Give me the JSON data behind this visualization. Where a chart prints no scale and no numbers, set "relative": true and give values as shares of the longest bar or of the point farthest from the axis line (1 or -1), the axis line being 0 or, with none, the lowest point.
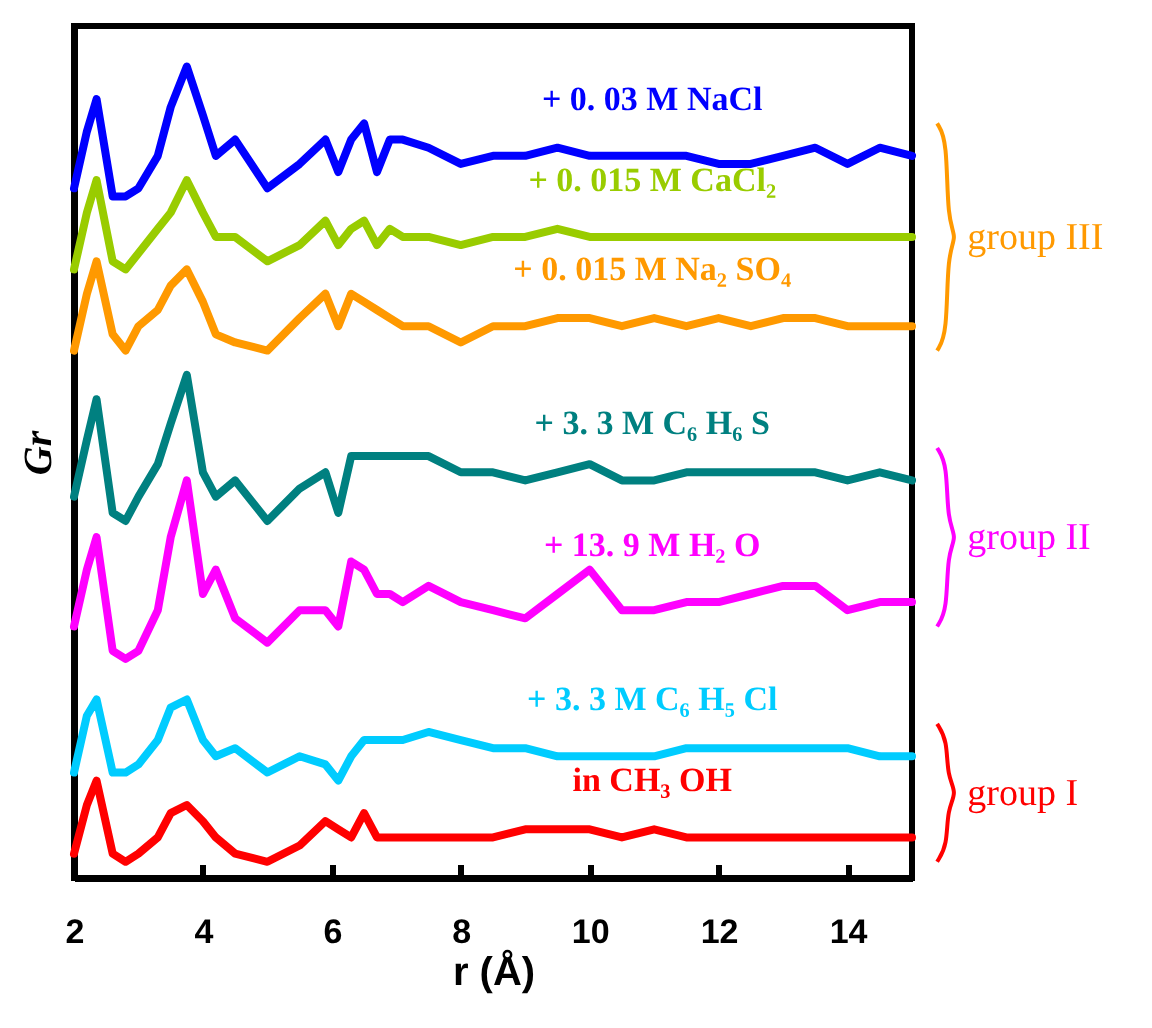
{
  "chart_data": {
    "type": "line",
    "relative": true,
    "xlabel": "r (Å)",
    "ylabel": "Gr",
    "xlim": [
      2,
      15
    ],
    "xticks": [
      2,
      4,
      6,
      8,
      10,
      12,
      14
    ],
    "grid": false,
    "marker": "none",
    "x": [
      2.0,
      2.2,
      2.35,
      2.6,
      2.8,
      3.0,
      3.3,
      3.5,
      3.75,
      4.0,
      4.2,
      4.5,
      5.0,
      5.5,
      5.9,
      6.1,
      6.3,
      6.5,
      6.7,
      6.9,
      7.1,
      7.5,
      8.0,
      8.5,
      9.0,
      9.5,
      10.0,
      10.5,
      11.0,
      11.5,
      12.0,
      12.5,
      13.0,
      13.5,
      14.0,
      14.5,
      15.0
    ],
    "series": [
      {
        "name": "+ 0. 03 M NaCl",
        "color": "#0000ff",
        "values": [
          0.85,
          0.92,
          0.96,
          0.84,
          0.84,
          0.85,
          0.89,
          0.95,
          1.0,
          0.94,
          0.89,
          0.91,
          0.85,
          0.88,
          0.91,
          0.87,
          0.91,
          0.93,
          0.87,
          0.91,
          0.91,
          0.9,
          0.88,
          0.89,
          0.89,
          0.9,
          0.89,
          0.89,
          0.89,
          0.89,
          0.88,
          0.88,
          0.89,
          0.9,
          0.88,
          0.9,
          0.89
        ]
      },
      {
        "name": "+ 0. 015 M CaCl₂",
        "color": "#99cc00",
        "values": [
          0.75,
          0.82,
          0.86,
          0.76,
          0.75,
          0.77,
          0.8,
          0.82,
          0.86,
          0.82,
          0.79,
          0.79,
          0.76,
          0.78,
          0.81,
          0.78,
          0.8,
          0.81,
          0.78,
          0.8,
          0.79,
          0.79,
          0.78,
          0.79,
          0.79,
          0.8,
          0.79,
          0.79,
          0.79,
          0.79,
          0.79,
          0.79,
          0.79,
          0.79,
          0.79,
          0.79,
          0.79
        ]
      },
      {
        "name": "+ 0. 015 M Na₂ SO₄",
        "color": "#ff9900",
        "values": [
          0.65,
          0.72,
          0.76,
          0.67,
          0.65,
          0.68,
          0.7,
          0.73,
          0.75,
          0.71,
          0.67,
          0.66,
          0.65,
          0.69,
          0.72,
          0.68,
          0.72,
          0.71,
          0.7,
          0.69,
          0.68,
          0.68,
          0.66,
          0.68,
          0.68,
          0.69,
          0.69,
          0.68,
          0.69,
          0.68,
          0.69,
          0.68,
          0.69,
          0.69,
          0.68,
          0.68,
          0.68
        ]
      },
      {
        "name": "+ 3. 3 M C₆ H₆ S",
        "color": "#008080",
        "values": [
          0.47,
          0.54,
          0.59,
          0.45,
          0.44,
          0.47,
          0.51,
          0.56,
          0.62,
          0.5,
          0.47,
          0.49,
          0.44,
          0.48,
          0.5,
          0.45,
          0.52,
          0.52,
          0.52,
          0.52,
          0.52,
          0.52,
          0.5,
          0.5,
          0.49,
          0.5,
          0.51,
          0.49,
          0.49,
          0.5,
          0.5,
          0.5,
          0.5,
          0.5,
          0.49,
          0.5,
          0.49
        ]
      },
      {
        "name": "+ 13. 9 M H₂ O",
        "color": "#ff00ff",
        "values": [
          0.31,
          0.38,
          0.42,
          0.28,
          0.27,
          0.28,
          0.33,
          0.42,
          0.49,
          0.35,
          0.38,
          0.32,
          0.29,
          0.33,
          0.33,
          0.31,
          0.39,
          0.38,
          0.35,
          0.35,
          0.34,
          0.36,
          0.34,
          0.33,
          0.32,
          0.35,
          0.38,
          0.33,
          0.33,
          0.34,
          0.34,
          0.35,
          0.36,
          0.36,
          0.33,
          0.34,
          0.34
        ]
      },
      {
        "name": "+ 3. 3 M C₆ H₅ Cl",
        "color": "#00ccff",
        "values": [
          0.13,
          0.2,
          0.22,
          0.13,
          0.13,
          0.14,
          0.17,
          0.21,
          0.22,
          0.17,
          0.15,
          0.16,
          0.13,
          0.15,
          0.14,
          0.12,
          0.15,
          0.17,
          0.17,
          0.17,
          0.17,
          0.18,
          0.17,
          0.16,
          0.16,
          0.15,
          0.15,
          0.15,
          0.15,
          0.16,
          0.16,
          0.16,
          0.16,
          0.16,
          0.16,
          0.15,
          0.15
        ]
      },
      {
        "name": "in CH₃ OH",
        "color": "#ff0000",
        "values": [
          0.03,
          0.09,
          0.12,
          0.03,
          0.02,
          0.03,
          0.05,
          0.08,
          0.09,
          0.07,
          0.05,
          0.03,
          0.02,
          0.04,
          0.07,
          0.06,
          0.05,
          0.08,
          0.05,
          0.05,
          0.05,
          0.05,
          0.05,
          0.05,
          0.06,
          0.06,
          0.06,
          0.05,
          0.06,
          0.05,
          0.05,
          0.05,
          0.05,
          0.05,
          0.05,
          0.05,
          0.05
        ]
      }
    ],
    "annotations": [
      "group III",
      "group II",
      "group I"
    ]
  }
}
